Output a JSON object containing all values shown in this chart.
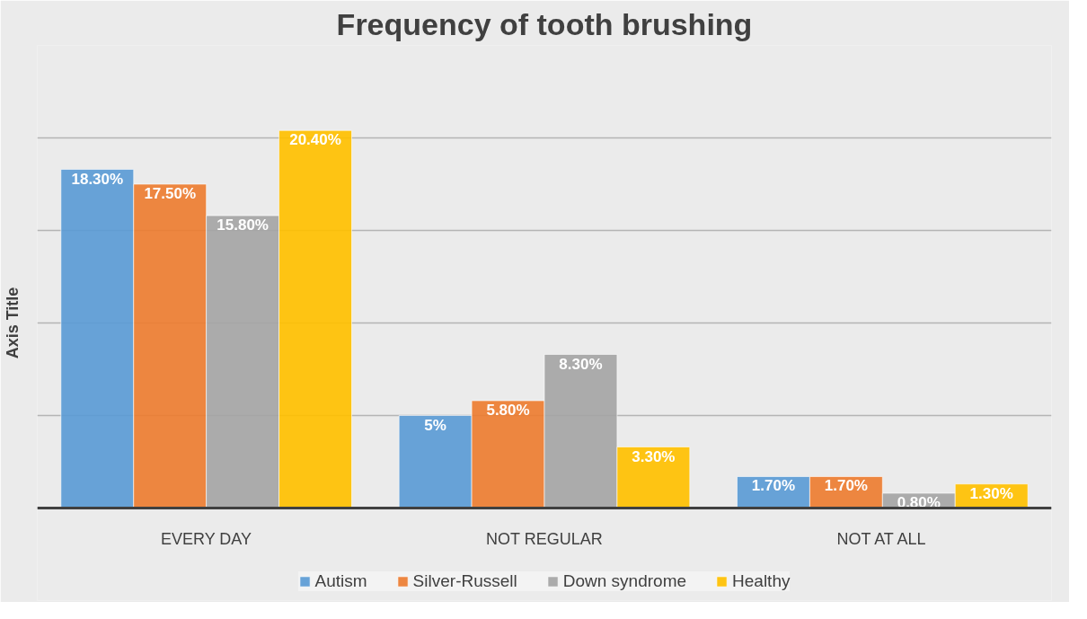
{
  "chart_data": {
    "type": "bar",
    "title": "Frequency of tooth brushing",
    "ylabel": "Axis Title",
    "categories": [
      "EVERY DAY",
      "NOT REGULAR",
      "NOT AT ALL"
    ],
    "series": [
      {
        "name": "Autism",
        "color": "#5b9bd5",
        "values": [
          18.3,
          5,
          1.7
        ],
        "value_labels": [
          "18.30%",
          "5%",
          "1.70%"
        ]
      },
      {
        "name": "Silver-Russell",
        "color": "#ed7d31",
        "values": [
          17.5,
          5.8,
          1.7
        ],
        "value_labels": [
          "17.50%",
          "5.80%",
          "1.70%"
        ]
      },
      {
        "name": "Down syndrome",
        "color": "#a5a5a5",
        "values": [
          15.8,
          8.3,
          0.8
        ],
        "value_labels": [
          "15.80%",
          "8.30%",
          "0.80%"
        ]
      },
      {
        "name": "Healthy",
        "color": "#ffc000",
        "values": [
          20.4,
          3.3,
          1.3
        ],
        "value_labels": [
          "20.40%",
          "3.30%",
          "1.30%"
        ]
      }
    ],
    "ylim": [
      0,
      25
    ],
    "yticks": [
      {
        "value": 0,
        "label": null
      },
      {
        "value": 5,
        "label": null
      },
      {
        "value": 10,
        "label": null
      },
      {
        "value": 15,
        "label": null
      },
      {
        "value": 20,
        "label": null
      },
      {
        "value": 25,
        "label": null
      }
    ],
    "grid": "y",
    "legend": "bottom",
    "tick_labels": "x"
  }
}
